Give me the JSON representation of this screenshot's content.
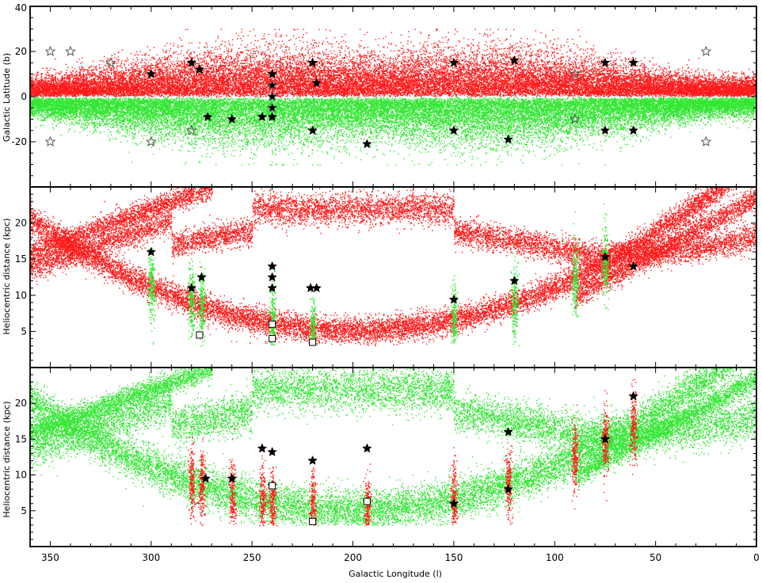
{
  "chart_data": [
    {
      "type": "scatter",
      "panel": "top",
      "title": "",
      "xlabel": "",
      "ylabel": "Galactic Latitude (b)",
      "xlim": [
        360,
        0
      ],
      "ylim": [
        -40,
        40
      ],
      "x_ticks": [
        350,
        300,
        250,
        200,
        150,
        100,
        50,
        0
      ],
      "y_ticks": [
        40,
        20,
        0,
        -20
      ],
      "grid": false,
      "series": [
        {
          "color": "#ff1a1a",
          "kind": "stream-particles",
          "description_values": {
            "b_range": [
              0,
              30
            ]
          }
        },
        {
          "color": "#33e633",
          "kind": "stream-particles",
          "description_values": {
            "b_range": [
              -30,
              0
            ]
          }
        },
        {
          "kind": "filled-star",
          "color": "#000000",
          "points": [
            [
              300,
              10
            ],
            [
              280,
              15
            ],
            [
              276,
              12
            ],
            [
              272,
              -9
            ],
            [
              260,
              -10
            ],
            [
              245,
              -9
            ],
            [
              240,
              10
            ],
            [
              240,
              5
            ],
            [
              240,
              0
            ],
            [
              240,
              -5
            ],
            [
              240,
              -9
            ],
            [
              220,
              15
            ],
            [
              218,
              6
            ],
            [
              220,
              -15
            ],
            [
              193,
              -21
            ],
            [
              150,
              15
            ],
            [
              150,
              -15
            ],
            [
              120,
              16
            ],
            [
              123,
              -19
            ],
            [
              75,
              15
            ],
            [
              75,
              -15
            ],
            [
              61,
              15
            ],
            [
              61,
              -15
            ]
          ]
        },
        {
          "kind": "open-star",
          "color": "#555555",
          "points": [
            [
              350,
              20
            ],
            [
              340,
              20
            ],
            [
              320,
              15
            ],
            [
              350,
              -20
            ],
            [
              300,
              -20
            ],
            [
              280,
              -15
            ],
            [
              240,
              5
            ],
            [
              240,
              0
            ],
            [
              240,
              -5
            ],
            [
              90,
              10
            ],
            [
              90,
              -10
            ],
            [
              25,
              20
            ],
            [
              25,
              -20
            ]
          ]
        }
      ]
    },
    {
      "type": "scatter",
      "panel": "middle",
      "title": "",
      "xlabel": "",
      "ylabel": "Heliocentric distance (kpc)",
      "xlim": [
        360,
        0
      ],
      "ylim": [
        0,
        25
      ],
      "x_ticks": [
        350,
        300,
        250,
        200,
        150,
        100,
        50,
        0
      ],
      "y_ticks": [
        5,
        10,
        15,
        20
      ],
      "grid": false,
      "series": [
        {
          "color": "#ff1a1a",
          "kind": "stream-particles"
        },
        {
          "color": "#33e633",
          "kind": "field-columns",
          "longitudes": [
            300,
            280,
            275,
            240,
            220,
            150,
            120,
            90,
            75
          ]
        },
        {
          "kind": "filled-star",
          "color": "#000000",
          "points": [
            [
              300,
              16
            ],
            [
              280,
              11
            ],
            [
              275,
              12.5
            ],
            [
              240,
              14
            ],
            [
              240,
              12.5
            ],
            [
              240,
              11
            ],
            [
              221,
              11
            ],
            [
              218,
              11
            ],
            [
              150,
              9.4
            ],
            [
              120,
              12
            ],
            [
              75,
              15.3
            ],
            [
              61,
              14
            ]
          ]
        },
        {
          "kind": "open-square",
          "color": "#000000",
          "points": [
            [
              276,
              4.5
            ],
            [
              240,
              6
            ],
            [
              240,
              4
            ],
            [
              220,
              3.5
            ]
          ]
        }
      ]
    },
    {
      "type": "scatter",
      "panel": "bottom",
      "title": "",
      "xlabel": "Galactic Longitude (l)",
      "ylabel": "Heliocentric distance (kpc)",
      "xlim": [
        360,
        0
      ],
      "ylim": [
        0,
        25
      ],
      "x_ticks": [
        350,
        300,
        250,
        200,
        150,
        100,
        50,
        0
      ],
      "y_ticks": [
        5,
        10,
        15,
        20
      ],
      "grid": false,
      "series": [
        {
          "color": "#33e633",
          "kind": "stream-particles"
        },
        {
          "color": "#ff1a1a",
          "kind": "field-columns",
          "longitudes": [
            280,
            275,
            260,
            245,
            240,
            220,
            193,
            150,
            123,
            90,
            75,
            61
          ]
        },
        {
          "kind": "filled-star",
          "color": "#000000",
          "points": [
            [
              273,
              9.5
            ],
            [
              260,
              9.5
            ],
            [
              245,
              13.7
            ],
            [
              240,
              13.2
            ],
            [
              240,
              8.5
            ],
            [
              220,
              12
            ],
            [
              193,
              13.7
            ],
            [
              150,
              6
            ],
            [
              123,
              16
            ],
            [
              123,
              8
            ],
            [
              75,
              15
            ],
            [
              61,
              21
            ]
          ]
        },
        {
          "kind": "open-square",
          "color": "#000000",
          "points": [
            [
              240,
              8.5
            ],
            [
              220,
              3.5
            ],
            [
              193,
              6.3
            ]
          ]
        }
      ]
    }
  ]
}
